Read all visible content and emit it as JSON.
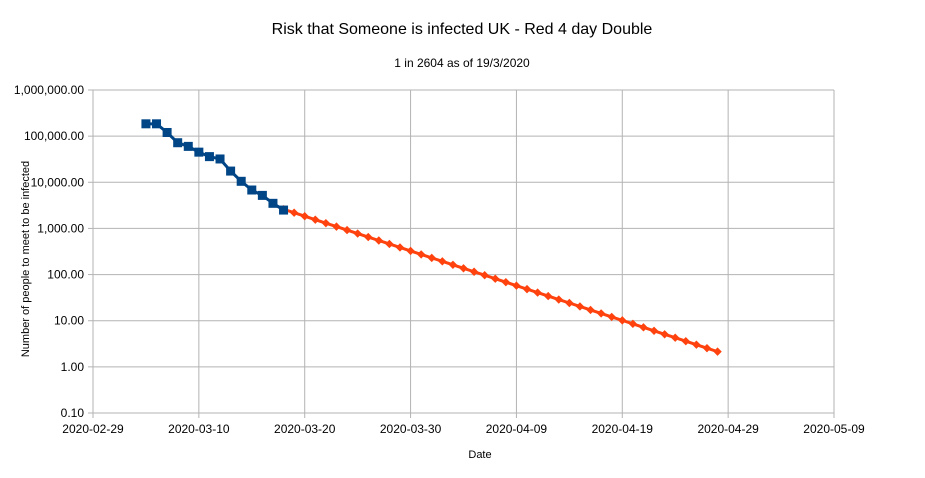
{
  "chart_data": {
    "type": "line",
    "title": "Risk that Someone is infected UK - Red 4 day Double",
    "subtitle": "1 in 2604   as of 19/3/2020",
    "xlabel": "Date",
    "ylabel": "Number of people to meet to be infected",
    "y_scale": "log",
    "ylim": [
      0.1,
      1000000
    ],
    "xlim": [
      "2020-02-29",
      "2020-05-09"
    ],
    "x_ticks": [
      "2020-02-29",
      "2020-03-10",
      "2020-03-20",
      "2020-03-30",
      "2020-04-09",
      "2020-04-19",
      "2020-04-29",
      "2020-05-09"
    ],
    "y_ticks": [
      {
        "value": 1000000,
        "label": "1,000,000.00"
      },
      {
        "value": 100000,
        "label": "100,000.00"
      },
      {
        "value": 10000,
        "label": "10,000.00"
      },
      {
        "value": 1000,
        "label": "1,000.00"
      },
      {
        "value": 100,
        "label": "100.00"
      },
      {
        "value": 10,
        "label": "10.00"
      },
      {
        "value": 1,
        "label": "1.00"
      },
      {
        "value": 0.1,
        "label": "0.10"
      }
    ],
    "grid": true,
    "series": [
      {
        "marker": "square",
        "color": "#004586",
        "points": [
          {
            "x": "2020-03-05",
            "y": 185000
          },
          {
            "x": "2020-03-06",
            "y": 185000
          },
          {
            "x": "2020-03-07",
            "y": 120000
          },
          {
            "x": "2020-03-08",
            "y": 72000
          },
          {
            "x": "2020-03-09",
            "y": 60000
          },
          {
            "x": "2020-03-10",
            "y": 45000
          },
          {
            "x": "2020-03-11",
            "y": 36000
          },
          {
            "x": "2020-03-12",
            "y": 32000
          },
          {
            "x": "2020-03-13",
            "y": 17500
          },
          {
            "x": "2020-03-14",
            "y": 10500
          },
          {
            "x": "2020-03-15",
            "y": 6800
          },
          {
            "x": "2020-03-16",
            "y": 5200
          },
          {
            "x": "2020-03-17",
            "y": 3500
          },
          {
            "x": "2020-03-18",
            "y": 2500
          }
        ]
      },
      {
        "marker": "diamond",
        "color": "#ff420e",
        "start": "2020-03-18",
        "end": "2020-04-28",
        "start_value": 2604,
        "doubling_days": 4
      }
    ]
  }
}
